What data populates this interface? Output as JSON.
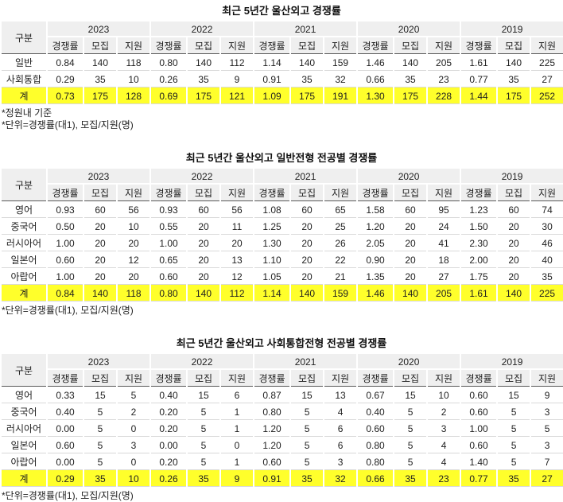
{
  "colors": {
    "header_bg": "#efefef",
    "total_row_bg": "#ffff2b",
    "header_rule": "#595959",
    "row_rule": "#d9d9d9"
  },
  "tables": [
    {
      "title": "최근 5년간 울산외고 경쟁률",
      "corner_label": "구분",
      "years": [
        "2023",
        "2022",
        "2021",
        "2020",
        "2019"
      ],
      "metrics": [
        "경쟁률",
        "모집",
        "지원"
      ],
      "rows": [
        {
          "label": "일반",
          "values": [
            "0.84",
            "140",
            "118",
            "0.80",
            "140",
            "112",
            "1.14",
            "140",
            "159",
            "1.46",
            "140",
            "205",
            "1.61",
            "140",
            "225"
          ]
        },
        {
          "label": "사회통합",
          "values": [
            "0.29",
            "35",
            "10",
            "0.26",
            "35",
            "9",
            "0.91",
            "35",
            "32",
            "0.66",
            "35",
            "23",
            "0.77",
            "35",
            "27"
          ]
        }
      ],
      "total": {
        "label": "계",
        "values": [
          "0.73",
          "175",
          "128",
          "0.69",
          "175",
          "121",
          "1.09",
          "175",
          "191",
          "1.30",
          "175",
          "228",
          "1.44",
          "175",
          "252"
        ]
      },
      "footnotes": [
        "*정원내 기준",
        "*단위=경쟁률(대1), 모집/지원(명)"
      ]
    },
    {
      "title": "최근 5년간 울산외고 일반전형 전공별 경쟁률",
      "corner_label": "구분",
      "years": [
        "2023",
        "2022",
        "2021",
        "2020",
        "2019"
      ],
      "metrics": [
        "경쟁률",
        "모집",
        "지원"
      ],
      "rows": [
        {
          "label": "영어",
          "values": [
            "0.93",
            "60",
            "56",
            "0.93",
            "60",
            "56",
            "1.08",
            "60",
            "65",
            "1.58",
            "60",
            "95",
            "1.23",
            "60",
            "74"
          ]
        },
        {
          "label": "중국어",
          "values": [
            "0.50",
            "20",
            "10",
            "0.55",
            "20",
            "11",
            "1.25",
            "20",
            "25",
            "1.20",
            "20",
            "24",
            "1.50",
            "20",
            "30"
          ]
        },
        {
          "label": "러시아어",
          "values": [
            "1.00",
            "20",
            "20",
            "1.00",
            "20",
            "20",
            "1.30",
            "20",
            "26",
            "2.05",
            "20",
            "41",
            "2.30",
            "20",
            "46"
          ]
        },
        {
          "label": "일본어",
          "values": [
            "0.60",
            "20",
            "12",
            "0.65",
            "20",
            "13",
            "1.10",
            "20",
            "22",
            "0.90",
            "20",
            "18",
            "2.00",
            "20",
            "40"
          ]
        },
        {
          "label": "아랍어",
          "values": [
            "1.00",
            "20",
            "20",
            "0.60",
            "20",
            "12",
            "1.05",
            "20",
            "21",
            "1.35",
            "20",
            "27",
            "1.75",
            "20",
            "35"
          ]
        }
      ],
      "total": {
        "label": "계",
        "values": [
          "0.84",
          "140",
          "118",
          "0.80",
          "140",
          "112",
          "1.14",
          "140",
          "159",
          "1.46",
          "140",
          "205",
          "1.61",
          "140",
          "225"
        ]
      },
      "footnotes": [
        "*단위=경쟁률(대1), 모집/지원(명)"
      ]
    },
    {
      "title": "최근 5년간 울산외고 사회통합전형 전공별 경쟁률",
      "corner_label": "구분",
      "years": [
        "2023",
        "2022",
        "2021",
        "2020",
        "2019"
      ],
      "metrics": [
        "경쟁률",
        "모집",
        "지원"
      ],
      "rows": [
        {
          "label": "영어",
          "values": [
            "0.33",
            "15",
            "5",
            "0.40",
            "15",
            "6",
            "0.87",
            "15",
            "13",
            "0.67",
            "15",
            "10",
            "0.60",
            "15",
            "9"
          ]
        },
        {
          "label": "중국어",
          "values": [
            "0.40",
            "5",
            "2",
            "0.20",
            "5",
            "1",
            "0.80",
            "5",
            "4",
            "0.40",
            "5",
            "2",
            "0.60",
            "5",
            "3"
          ]
        },
        {
          "label": "러시아어",
          "values": [
            "0.00",
            "5",
            "0",
            "0.20",
            "5",
            "1",
            "1.20",
            "5",
            "6",
            "0.60",
            "5",
            "3",
            "1.00",
            "5",
            "5"
          ]
        },
        {
          "label": "일본어",
          "values": [
            "0.60",
            "5",
            "3",
            "0.00",
            "5",
            "0",
            "1.20",
            "5",
            "6",
            "0.80",
            "5",
            "4",
            "0.60",
            "5",
            "3"
          ]
        },
        {
          "label": "아랍어",
          "values": [
            "0.00",
            "5",
            "0",
            "0.20",
            "5",
            "1",
            "0.60",
            "5",
            "3",
            "0.80",
            "5",
            "4",
            "1.40",
            "5",
            "7"
          ]
        }
      ],
      "total": {
        "label": "계",
        "values": [
          "0.29",
          "35",
          "10",
          "0.26",
          "35",
          "9",
          "0.91",
          "35",
          "32",
          "0.66",
          "35",
          "23",
          "0.77",
          "35",
          "27"
        ]
      },
      "footnotes": [
        "*단위=경쟁률(대1), 모집/지원(명)"
      ]
    }
  ]
}
